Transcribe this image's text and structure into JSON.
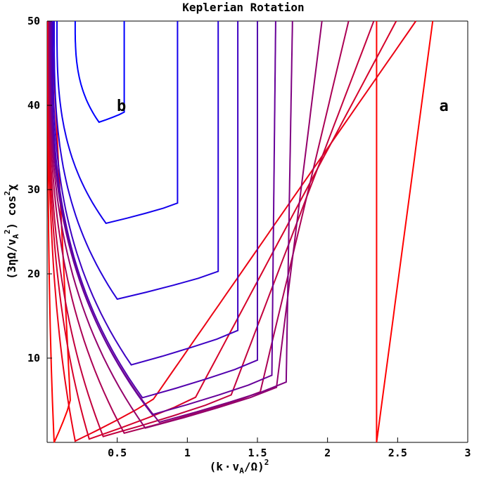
{
  "chart_data": {
    "type": "line",
    "title": "Keplerian Rotation",
    "xlabel": "(k·v_A/Ω)^2",
    "ylabel": "(3ηΩ/v_A^2) cos^2χ",
    "xlim": [
      0,
      3
    ],
    "ylim": [
      0,
      50
    ],
    "x_ticks": [
      0.5,
      1,
      1.5,
      2,
      2.5,
      3
    ],
    "x_tick_labels": [
      "0.5",
      "1",
      "1.5",
      "2",
      "2.5",
      "3"
    ],
    "y_ticks": [
      10,
      20,
      30,
      40,
      50
    ],
    "y_tick_labels": [
      "10",
      "20",
      "30",
      "40",
      "50"
    ],
    "grid": false,
    "legend": "none",
    "annotations": [
      {
        "text": "b",
        "x": 0.53,
        "y": 40
      },
      {
        "text": "a",
        "x": 2.83,
        "y": 40
      }
    ],
    "color_start": "#ff0000",
    "color_end": "#0000ff",
    "contour_levels": [
      {
        "color_t": 0.0,
        "x_min": 0.05,
        "y_min": 0.0,
        "x_left_top": 0.005,
        "x_right_bottom": 0.18,
        "x_right_top": 0.03
      },
      {
        "color_t": 0.0,
        "x_min": 2.35,
        "y_min": 0.0,
        "x_left_top": 2.35,
        "x_right_bottom": 2.35,
        "x_right_top": 2.75
      },
      {
        "color_t": 0.08,
        "x_min": 0.2,
        "y_min": 0.15,
        "x_left_top": 0.007,
        "x_right_bottom": 0.55,
        "x_right_top": 2.63
      },
      {
        "color_t": 0.16,
        "x_min": 0.3,
        "y_min": 0.4,
        "x_left_top": 0.009,
        "x_right_bottom": 0.9,
        "x_right_top": 2.49
      },
      {
        "color_t": 0.24,
        "x_min": 0.4,
        "y_min": 0.7,
        "x_left_top": 0.011,
        "x_right_bottom": 1.2,
        "x_right_top": 2.33
      },
      {
        "color_t": 0.33,
        "x_min": 0.55,
        "y_min": 1.1,
        "x_left_top": 0.014,
        "x_right_bottom": 1.45,
        "x_right_top": 2.15
      },
      {
        "color_t": 0.42,
        "x_min": 0.7,
        "y_min": 1.7,
        "x_left_top": 0.017,
        "x_right_bottom": 1.6,
        "x_right_top": 1.96
      },
      {
        "color_t": 0.51,
        "x_min": 0.8,
        "y_min": 2.4,
        "x_left_top": 0.021,
        "x_right_bottom": 1.7,
        "x_right_top": 1.75
      },
      {
        "color_t": 0.6,
        "x_min": 0.75,
        "y_min": 3.3,
        "x_left_top": 0.026,
        "x_right_bottom": 1.6,
        "x_right_top": 1.63
      },
      {
        "color_t": 0.68,
        "x_min": 0.68,
        "y_min": 5.3,
        "x_left_top": 0.032,
        "x_right_bottom": 1.5,
        "x_right_top": 1.5
      },
      {
        "color_t": 0.76,
        "x_min": 0.6,
        "y_min": 9.2,
        "x_left_top": 0.04,
        "x_right_bottom": 1.36,
        "x_right_top": 1.36
      },
      {
        "color_t": 0.85,
        "x_min": 0.5,
        "y_min": 17.0,
        "x_left_top": 0.05,
        "x_right_bottom": 1.22,
        "x_right_top": 1.22
      },
      {
        "color_t": 0.93,
        "x_min": 0.42,
        "y_min": 26.0,
        "x_left_top": 0.07,
        "x_right_bottom": 0.93,
        "x_right_top": 0.93
      },
      {
        "color_t": 1.0,
        "x_min": 0.37,
        "y_min": 38.0,
        "x_left_top": 0.2,
        "x_right_bottom": 0.55,
        "x_right_top": 0.55
      }
    ]
  }
}
